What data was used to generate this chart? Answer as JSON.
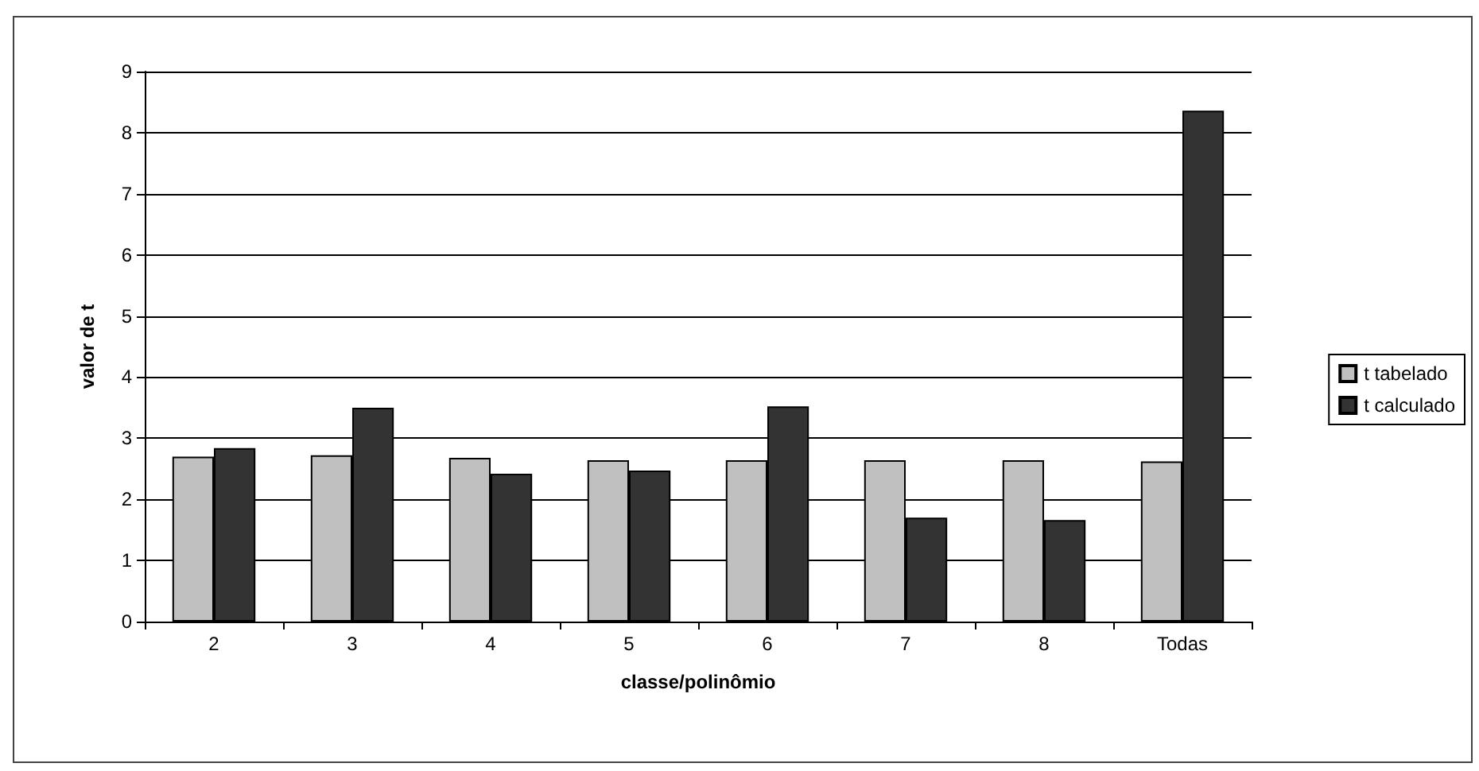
{
  "chart_data": {
    "type": "bar",
    "xlabel": "classe/polinômio",
    "ylabel": "valor de t",
    "categories": [
      "2",
      "3",
      "4",
      "5",
      "6",
      "7",
      "8",
      "Todas"
    ],
    "series": [
      {
        "name": "t tabelado",
        "color": "#c0c0c0",
        "values": [
          2.7,
          2.72,
          2.68,
          2.64,
          2.64,
          2.64,
          2.64,
          2.62
        ]
      },
      {
        "name": "t calculado",
        "color": "#333333",
        "values": [
          2.84,
          3.5,
          2.42,
          2.47,
          3.52,
          1.7,
          1.66,
          8.36
        ]
      }
    ],
    "ylim": [
      0,
      9
    ],
    "yticks": [
      0,
      1,
      2,
      3,
      4,
      5,
      6,
      7,
      8,
      9
    ],
    "grid": "y",
    "legend": "right"
  }
}
